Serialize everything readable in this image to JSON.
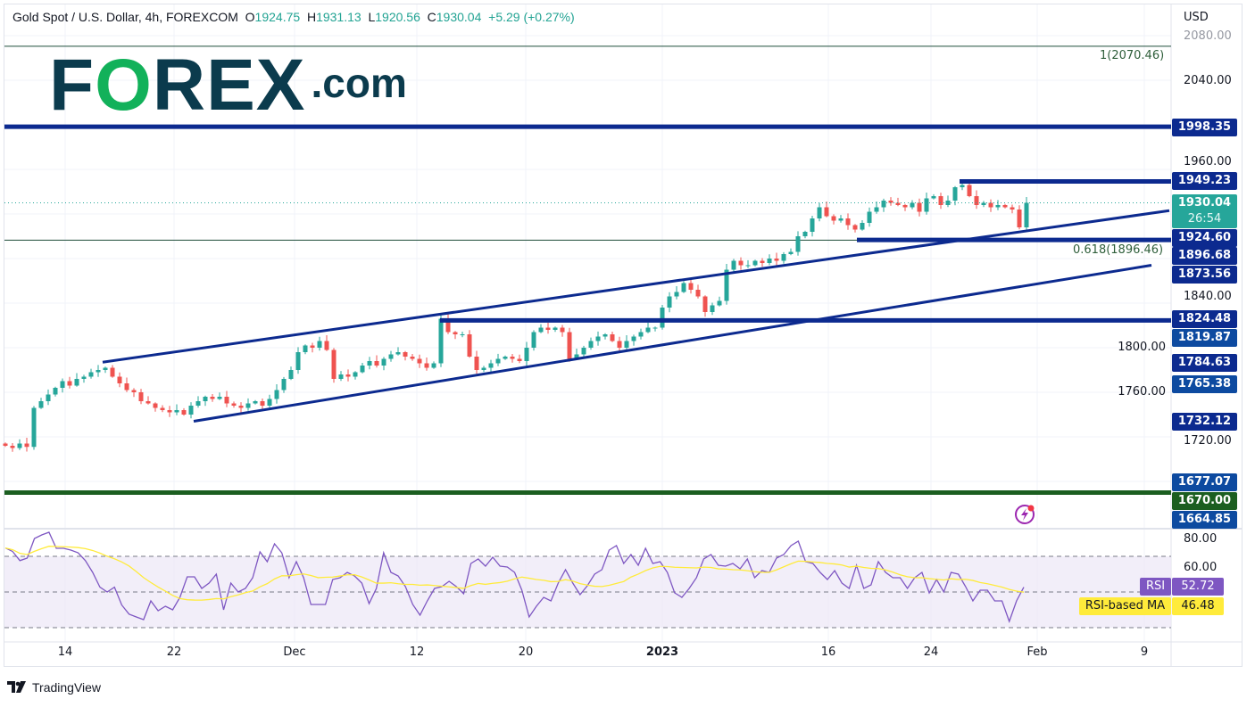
{
  "header": {
    "symbol": "Gold Spot / U.S. Dollar, 4h, FOREXCOM",
    "o_label": "O",
    "o": "1924.75",
    "h_label": "H",
    "h": "1931.13",
    "l_label": "L",
    "l": "1920.56",
    "c_label": "C",
    "c": "1930.04",
    "change": "+5.29 (+0.27%)"
  },
  "logo": {
    "part1": "F",
    "part2": "O",
    "part3": "REX",
    "part4": ".com"
  },
  "colors": {
    "up": "#26a69a",
    "down": "#ef5350",
    "drawing": "#0c2a8f",
    "support_green": "#1b5e20",
    "fib": "#1f4d3a",
    "rsi": "#7e57c2",
    "rsi_ma": "#ffeb3b",
    "rsi_band": "#ede7f6",
    "logo_dark": "#0b3b4d",
    "logo_green": "#12b15a"
  },
  "chart_data": {
    "type": "candlestick",
    "title": "Gold Spot / U.S. Dollar, 4h, FOREXCOM",
    "ylim": [
      1638,
      2108
    ],
    "grid": true,
    "closes": [
      1712,
      1710,
      1714,
      1711,
      1746,
      1752,
      1758,
      1764,
      1770,
      1766,
      1772,
      1774,
      1778,
      1780,
      1782,
      1774,
      1768,
      1762,
      1760,
      1752,
      1750,
      1746,
      1744,
      1742,
      1744,
      1740,
      1748,
      1752,
      1756,
      1754,
      1756,
      1750,
      1748,
      1746,
      1750,
      1752,
      1748,
      1754,
      1762,
      1772,
      1780,
      1796,
      1802,
      1800,
      1806,
      1798,
      1772,
      1776,
      1774,
      1778,
      1784,
      1788,
      1784,
      1790,
      1794,
      1796,
      1792,
      1790,
      1786,
      1782,
      1786,
      1826,
      1814,
      1812,
      1812,
      1792,
      1780,
      1782,
      1786,
      1790,
      1792,
      1790,
      1788,
      1800,
      1814,
      1818,
      1816,
      1818,
      1814,
      1790,
      1794,
      1800,
      1806,
      1810,
      1812,
      1806,
      1800,
      1806,
      1810,
      1814,
      1818,
      1818,
      1836,
      1846,
      1850,
      1858,
      1852,
      1846,
      1832,
      1838,
      1842,
      1870,
      1878,
      1874,
      1874,
      1878,
      1876,
      1880,
      1878,
      1884,
      1886,
      1900,
      1904,
      1916,
      1926,
      1918,
      1914,
      1916,
      1910,
      1906,
      1912,
      1922,
      1926,
      1932,
      1930,
      1928,
      1926,
      1930,
      1922,
      1934,
      1936,
      1928,
      1932,
      1944,
      1946,
      1936,
      1928,
      1930,
      1926,
      1928,
      1926,
      1924,
      1908,
      1930
    ],
    "price_axis": {
      "currency": "USD",
      "ticks": [
        "2080.00",
        "2040.00",
        "1960.00",
        "1840.00",
        "1800.00",
        "1760.00",
        "1720.00"
      ]
    },
    "time_ticks": [
      "14",
      "22",
      "Dec",
      "12",
      "20",
      "2023",
      "16",
      "24",
      "Feb",
      "9"
    ],
    "current_price": {
      "value": "1930.04",
      "countdown": "26:54"
    },
    "price_labels": [
      {
        "value": "1998.35",
        "style": "dark"
      },
      {
        "value": "1949.23",
        "style": "dark"
      },
      {
        "value": "1924.60",
        "style": "dark"
      },
      {
        "value": "1896.68",
        "style": "dark"
      },
      {
        "value": "1873.56",
        "style": "dark"
      },
      {
        "value": "1824.48",
        "style": "dark"
      },
      {
        "value": "1819.87",
        "style": "light"
      },
      {
        "value": "1784.63",
        "style": "dark"
      },
      {
        "value": "1765.38",
        "style": "light"
      },
      {
        "value": "1732.12",
        "style": "dark"
      },
      {
        "value": "1677.07",
        "style": "light"
      },
      {
        "value": "1670.00",
        "style": "green"
      },
      {
        "value": "1664.85",
        "style": "light"
      }
    ],
    "fib_levels": [
      {
        "label": "1(2070.46)",
        "price": 2070.46
      },
      {
        "label": "0.618(1896.46)",
        "price": 1896.46
      }
    ],
    "drawings": {
      "upper_channel": [
        1787,
        1923
      ],
      "lower_channel": [
        1734,
        1874
      ],
      "horizontal_levels": [
        1998.35,
        1949.23,
        1896.68,
        1824.48
      ],
      "support_level": 1670.0
    },
    "rsi": {
      "label": "RSI",
      "value": "52.72",
      "ma_label": "RSI-based MA",
      "ma_value": "46.48",
      "ticks": [
        "80.00",
        "60.00"
      ],
      "bands": [
        70,
        50,
        30
      ],
      "ylim": [
        22,
        85
      ],
      "values": [
        74.7,
        72.7,
        67.6,
        69,
        80,
        82,
        83.5,
        74.5,
        74.5,
        73.5,
        72,
        67.6,
        61,
        52.7,
        50,
        52.7,
        42.7,
        37.6,
        36,
        34.5,
        45,
        39.5,
        42,
        40,
        47,
        58.5,
        58.5,
        52,
        55,
        60,
        40,
        55,
        50,
        52,
        58,
        72.5,
        67,
        77,
        72,
        58,
        67,
        58,
        43,
        43,
        43,
        57,
        58,
        61,
        59,
        55,
        43.5,
        52,
        72,
        61,
        59,
        53,
        43,
        37,
        45,
        52,
        53,
        56,
        53,
        49,
        66,
        68.5,
        64.5,
        69.5,
        64.5,
        64,
        61,
        51,
        36,
        42,
        47,
        45,
        55,
        62.5,
        55,
        48.5,
        53.5,
        60,
        62.5,
        73.5,
        76,
        66,
        71,
        65,
        74.5,
        66,
        67,
        61,
        49.5,
        47,
        52,
        58,
        68.5,
        71,
        65,
        64.5,
        66,
        63,
        68.5,
        58,
        62,
        61,
        69,
        71,
        76,
        78.5,
        67,
        66,
        61,
        57,
        62,
        55,
        52,
        65,
        52,
        54,
        67,
        61,
        58,
        58,
        52,
        58,
        61,
        49.5,
        57,
        50,
        61,
        60,
        53,
        45,
        51,
        51,
        45,
        45,
        33.5,
        45,
        52.7
      ]
    }
  },
  "footer": {
    "brand": "TradingView"
  }
}
